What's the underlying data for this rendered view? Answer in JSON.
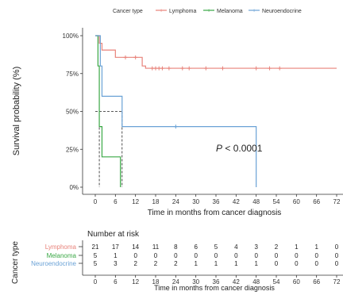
{
  "legend": {
    "title": "Cancer type",
    "entries": [
      {
        "label": "Lymphoma",
        "color": "#e8827a"
      },
      {
        "label": "Melanoma",
        "color": "#3aa845"
      },
      {
        "label": "Neuroendocrine",
        "color": "#6aa2d6"
      }
    ]
  },
  "km_plot": {
    "ylabel": "Survival probability (%)",
    "xlabel": "Time in months from cancer diagnosis",
    "x_ticks": [
      "0",
      "6",
      "12",
      "18",
      "24",
      "30",
      "36",
      "42",
      "48",
      "54",
      "60",
      "66",
      "72"
    ],
    "y_ticks": [
      "0%",
      "25%",
      "50%",
      "75%",
      "100%"
    ],
    "annotation_p": "P",
    "annotation_value": " < 0.0001"
  },
  "risk_table": {
    "title": "Number at risk",
    "ylabel": "Cancer type",
    "xlabel": "Time in months from cancer diagnosis",
    "rows": [
      {
        "label": "Lymphoma",
        "color": "#e8827a",
        "values": [
          "21",
          "17",
          "14",
          "11",
          "8",
          "6",
          "5",
          "4",
          "3",
          "2",
          "1",
          "1",
          "0"
        ]
      },
      {
        "label": "Melanoma",
        "color": "#3aa845",
        "values": [
          "5",
          "1",
          "0",
          "0",
          "0",
          "0",
          "0",
          "0",
          "0",
          "0",
          "0",
          "0",
          "0"
        ]
      },
      {
        "label": "Neuroendocrine",
        "color": "#6aa2d6",
        "values": [
          "5",
          "3",
          "2",
          "2",
          "2",
          "1",
          "1",
          "1",
          "1",
          "0",
          "0",
          "0",
          "0"
        ]
      }
    ],
    "x_ticks": [
      "0",
      "6",
      "12",
      "18",
      "24",
      "30",
      "36",
      "42",
      "48",
      "54",
      "60",
      "66",
      "72"
    ]
  },
  "chart_data": {
    "type": "line",
    "subtype": "kaplan-meier step curves with censor marks",
    "xlabel": "Time in months from cancer diagnosis",
    "ylabel": "Survival probability (%)",
    "xlim": [
      0,
      72
    ],
    "ylim": [
      0,
      100
    ],
    "x_tick_step": 6,
    "grid": false,
    "legend_position": "top",
    "median_survival_reference_lines": {
      "y": 50,
      "x": [
        1.2,
        8
      ]
    },
    "series": [
      {
        "name": "Lymphoma",
        "color": "#e8827a",
        "steps": [
          [
            0,
            100
          ],
          [
            1.2,
            95
          ],
          [
            2,
            90.5
          ],
          [
            6,
            85.7
          ],
          [
            14,
            80
          ],
          [
            15,
            78.5
          ],
          [
            72,
            78.5
          ]
        ],
        "censored": [
          [
            9,
            85.7
          ],
          [
            12,
            85.7
          ],
          [
            17,
            78.5
          ],
          [
            18,
            78.5
          ],
          [
            19,
            78.5
          ],
          [
            20,
            78.5
          ],
          [
            22,
            78.5
          ],
          [
            26,
            78.5
          ],
          [
            28,
            78.5
          ],
          [
            33,
            78.5
          ],
          [
            38,
            78.5
          ],
          [
            48,
            78.5
          ],
          [
            52,
            78.5
          ],
          [
            55,
            78.5
          ]
        ]
      },
      {
        "name": "Melanoma",
        "color": "#3aa845",
        "steps": [
          [
            0,
            100
          ],
          [
            0.8,
            80
          ],
          [
            1.2,
            40
          ],
          [
            2,
            20
          ],
          [
            7.5,
            20
          ],
          [
            7.5,
            0
          ]
        ],
        "censored": []
      },
      {
        "name": "Neuroendocrine",
        "color": "#6aa2d6",
        "steps": [
          [
            0,
            100
          ],
          [
            1.5,
            80
          ],
          [
            2,
            60
          ],
          [
            7.5,
            60
          ],
          [
            8,
            40
          ],
          [
            48,
            40
          ],
          [
            48,
            0
          ]
        ],
        "censored": [
          [
            24,
            40
          ]
        ]
      }
    ],
    "annotations": [
      "P < 0.0001"
    ],
    "risk_table": {
      "title": "Number at risk",
      "times": [
        0,
        6,
        12,
        18,
        24,
        30,
        36,
        42,
        48,
        54,
        60,
        66,
        72
      ],
      "rows": [
        {
          "name": "Lymphoma",
          "values": [
            21,
            17,
            14,
            11,
            8,
            6,
            5,
            4,
            3,
            2,
            1,
            1,
            0
          ]
        },
        {
          "name": "Melanoma",
          "values": [
            5,
            1,
            0,
            0,
            0,
            0,
            0,
            0,
            0,
            0,
            0,
            0,
            0
          ]
        },
        {
          "name": "Neuroendocrine",
          "values": [
            5,
            3,
            2,
            2,
            2,
            1,
            1,
            1,
            1,
            0,
            0,
            0,
            0
          ]
        }
      ]
    }
  }
}
